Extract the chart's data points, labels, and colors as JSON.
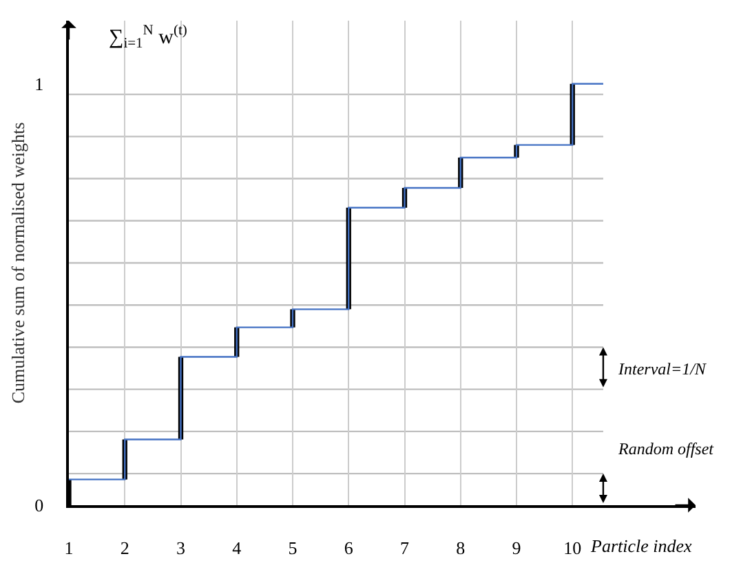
{
  "chart_data": {
    "type": "step",
    "ylabel": "Cumulative sum of normalised weights",
    "xlabel": "Particle index",
    "x": [
      1,
      2,
      3,
      4,
      5,
      6,
      7,
      8,
      9,
      10
    ],
    "series": [
      {
        "type": "bar",
        "color": "#000000",
        "base": [
          0,
          0.061,
          0.156,
          0.352,
          0.422,
          0.465,
          0.706,
          0.753,
          0.825,
          0.855
        ],
        "values": [
          0.061,
          0.095,
          0.196,
          0.07,
          0.043,
          0.241,
          0.047,
          0.072,
          0.03,
          0.145
        ]
      },
      {
        "color": "#4472c4",
        "x": [
          1,
          2,
          3,
          4,
          5,
          6,
          7,
          8,
          9,
          10,
          10.55
        ],
        "values": [
          0.061,
          0.156,
          0.352,
          0.422,
          0.465,
          0.706,
          0.753,
          0.825,
          0.855,
          1.0,
          1.0
        ]
      }
    ],
    "xlim": [
      1,
      12.2
    ],
    "xticks": [
      1,
      2,
      3,
      4,
      5,
      6,
      7,
      8,
      9,
      10
    ],
    "ylim": [
      0,
      1.15
    ],
    "yticks": [
      0,
      1
    ],
    "grid": "x",
    "ref_lines": [
      {
        "axis": "y",
        "value": 0.075
      },
      {
        "axis": "y",
        "value": 0.175
      },
      {
        "axis": "y",
        "value": 0.275
      },
      {
        "axis": "y",
        "value": 0.375
      },
      {
        "axis": "y",
        "value": 0.475
      },
      {
        "axis": "y",
        "value": 0.575
      },
      {
        "axis": "y",
        "value": 0.675
      },
      {
        "axis": "y",
        "value": 0.775
      },
      {
        "axis": "y",
        "value": 0.875
      },
      {
        "axis": "y",
        "value": 0.975
      }
    ],
    "annotations": [
      "∑$_{i=1}$$^{N}$ w$^{(t)}$",
      "Interval=1/N",
      "Random offset"
    ]
  }
}
